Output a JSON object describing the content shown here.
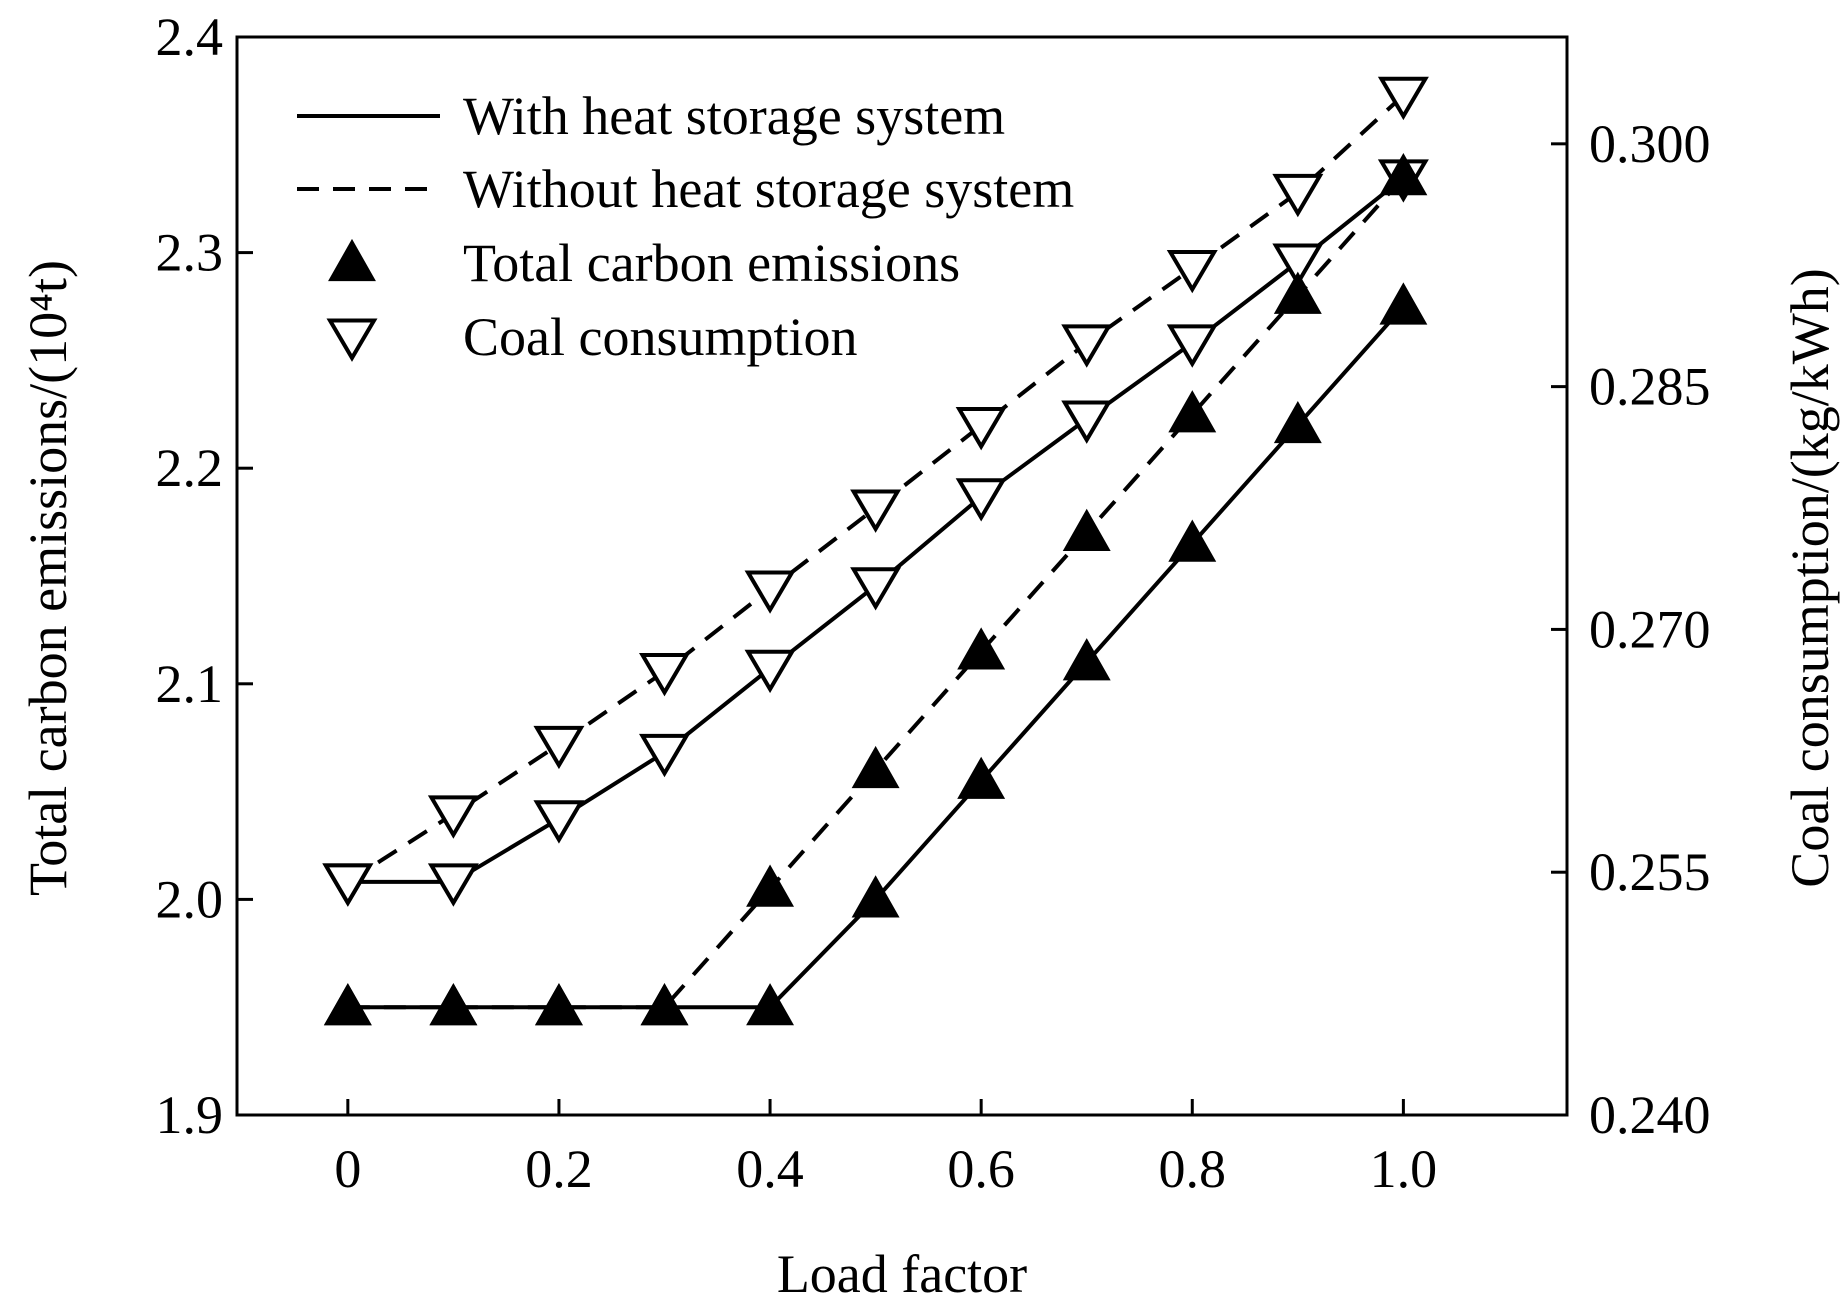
{
  "chart_data": {
    "type": "line",
    "xlabel": "Load factor",
    "ylabel_left": "Total carbon emissions/(10⁴t)",
    "ylabel_right": "Coal consumption/(kg/kWh)",
    "x": [
      0,
      0.1,
      0.2,
      0.3,
      0.4,
      0.5,
      0.6,
      0.7,
      0.8,
      0.9,
      1.0
    ],
    "xlim": [
      -0.105,
      1.155
    ],
    "ylim_left": [
      1.9,
      2.4
    ],
    "ylim_right": [
      0.24,
      0.3066
    ],
    "x_ticks": [
      {
        "value": 0,
        "label": "0"
      },
      {
        "value": 0.2,
        "label": "0.2"
      },
      {
        "value": 0.4,
        "label": "0.4"
      },
      {
        "value": 0.6,
        "label": "0.6"
      },
      {
        "value": 0.8,
        "label": "0.8"
      },
      {
        "value": 1.0,
        "label": "1.0"
      }
    ],
    "y_left_ticks": [
      {
        "value": 1.9,
        "label": "1.9"
      },
      {
        "value": 2.0,
        "label": "2.0"
      },
      {
        "value": 2.1,
        "label": "2.1"
      },
      {
        "value": 2.2,
        "label": "2.2"
      },
      {
        "value": 2.3,
        "label": "2.3"
      },
      {
        "value": 2.4,
        "label": "2.4"
      }
    ],
    "y_right_ticks": [
      {
        "value": 0.24,
        "label": "0.240"
      },
      {
        "value": 0.255,
        "label": "0.255"
      },
      {
        "value": 0.27,
        "label": "0.270"
      },
      {
        "value": 0.285,
        "label": "0.285"
      },
      {
        "value": 0.3,
        "label": "0.300"
      }
    ],
    "legend": [
      {
        "label": "With heat storage system",
        "kind": "solid-line"
      },
      {
        "label": "Without heat storage system",
        "kind": "dashed-line"
      },
      {
        "label": "Total carbon emissions",
        "kind": "filled-up-triangle"
      },
      {
        "label": "Coal consumption",
        "kind": "open-down-triangle"
      }
    ],
    "legend_position": "top-left",
    "series": [
      {
        "name": "Coal consumption without heat storage system",
        "axis": "right",
        "line": "dashed",
        "marker": "open-down-triangle",
        "values": [
          0.2544,
          0.2586,
          0.2629,
          0.2674,
          0.2725,
          0.2775,
          0.2826,
          0.2877,
          0.2923,
          0.297,
          0.303
        ]
      },
      {
        "name": "Coal consumption with heat storage system",
        "axis": "right",
        "line": "solid",
        "marker": "open-down-triangle",
        "values": [
          0.2544,
          0.2544,
          0.2583,
          0.2624,
          0.2676,
          0.2727,
          0.2782,
          0.283,
          0.2877,
          0.2927,
          0.2979
        ]
      },
      {
        "name": "Total carbon emissions without heat storage system",
        "axis": "left",
        "line": "dashed",
        "marker": "filled-up-triangle",
        "values": [
          1.95,
          1.95,
          1.95,
          1.95,
          2.005,
          2.06,
          2.115,
          2.17,
          2.225,
          2.28,
          2.335
        ]
      },
      {
        "name": "Total carbon emissions with heat storage system",
        "axis": "left",
        "line": "solid",
        "marker": "filled-up-triangle",
        "values": [
          1.95,
          1.95,
          1.95,
          1.95,
          1.95,
          2.0,
          2.055,
          2.11,
          2.165,
          2.22,
          2.275
        ]
      }
    ]
  }
}
